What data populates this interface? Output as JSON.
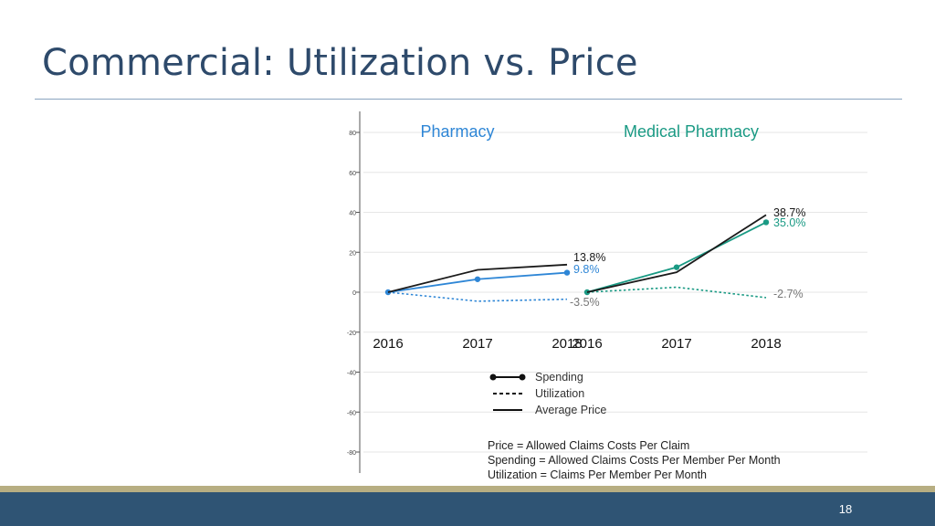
{
  "slide": {
    "title": "Commercial: Utilization vs. Price",
    "page_number": "18"
  },
  "colors": {
    "title": "#2e4a6b",
    "pharmacy": "#2e86d6",
    "medical": "#1a9a84",
    "price": "#1a1a1a",
    "footer_band": "#2f5474",
    "footer_accent": "#b7ae82"
  },
  "chart_data": {
    "type": "line",
    "y_ticks": [
      "80",
      "60",
      "40",
      "20",
      "0",
      "-20",
      "-40",
      "-60",
      "-80"
    ],
    "ylim": [
      -80,
      80
    ],
    "grid": true,
    "panels": [
      {
        "name": "Pharmacy",
        "x": [
          "2016",
          "2017",
          "2018"
        ],
        "series": [
          {
            "name": "Spending",
            "values": [
              0,
              6.5,
              9.8
            ],
            "style": "solid-dots",
            "color": "#2e86d6"
          },
          {
            "name": "Utilization",
            "values": [
              0,
              -4.5,
              -3.5
            ],
            "style": "dotted",
            "color": "#2e86d6"
          },
          {
            "name": "Average Price",
            "values": [
              0,
              11.2,
              13.8
            ],
            "style": "solid",
            "color": "#1a1a1a"
          }
        ],
        "labels": [
          {
            "text": "13.8%",
            "color": "#1a1a1a"
          },
          {
            "text": "9.8%",
            "color": "#2e86d6"
          },
          {
            "text": "-3.5%",
            "color": "#777777"
          }
        ]
      },
      {
        "name": "Medical Pharmacy",
        "x": [
          "2016",
          "2017",
          "2018"
        ],
        "series": [
          {
            "name": "Spending",
            "values": [
              0,
              12.5,
              35.0
            ],
            "style": "solid-dots",
            "color": "#1a9a84"
          },
          {
            "name": "Utilization",
            "values": [
              0,
              2.5,
              -2.7
            ],
            "style": "dotted",
            "color": "#1a9a84"
          },
          {
            "name": "Average Price",
            "values": [
              0,
              10.0,
              38.7
            ],
            "style": "solid",
            "color": "#1a1a1a"
          }
        ],
        "labels": [
          {
            "text": "38.7%",
            "color": "#1a1a1a"
          },
          {
            "text": "35.0%",
            "color": "#1a9a84"
          },
          {
            "text": "-2.7%",
            "color": "#777777"
          }
        ]
      }
    ],
    "legend": [
      {
        "label": "Spending",
        "style": "solid-dots"
      },
      {
        "label": "Utilization",
        "style": "dotted"
      },
      {
        "label": "Average Price",
        "style": "solid"
      }
    ],
    "legend_position": "bottom-center",
    "notes": [
      "Price = Allowed Claims Costs Per Claim",
      "Spending = Allowed Claims Costs Per Member Per Month",
      "Utilization = Claims Per Member Per Month"
    ]
  }
}
